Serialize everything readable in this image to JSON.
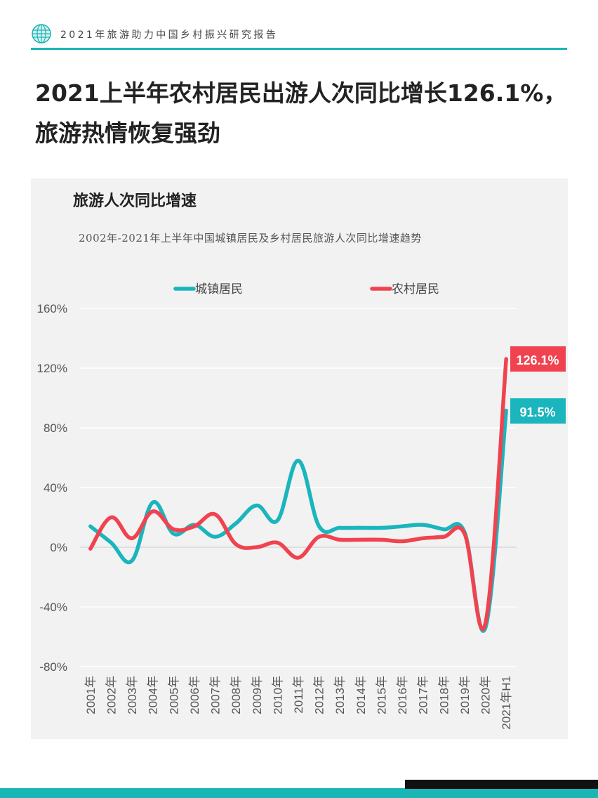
{
  "header": {
    "report_title": "2021年旅游助力中国乡村振兴研究报告"
  },
  "headline": {
    "line1": "2021上半年农村居民出游人次同比增长126.1%，",
    "line2": "旅游热情恢复强劲"
  },
  "chart_heading": "旅游人次同比增速",
  "chart_data": {
    "type": "line",
    "title": "2002年-2021年上半年中国城镇居民及乡村居民旅游人次同比增速趋势",
    "categories": [
      "2001年",
      "2002年",
      "2003年",
      "2004年",
      "2005年",
      "2006年",
      "2007年",
      "2008年",
      "2009年",
      "2010年",
      "2011年",
      "2012年",
      "2013年",
      "2014年",
      "2015年",
      "2016年",
      "2017年",
      "2018年",
      "2019年",
      "2020年",
      "2021年H1"
    ],
    "series": [
      {
        "name": "城镇居民",
        "color": "#1ab5bd",
        "values": [
          14,
          3,
          -9,
          30,
          9,
          15,
          7,
          16,
          28,
          18,
          58,
          14,
          13,
          13,
          13,
          14,
          15,
          12,
          10,
          -54,
          91.5
        ]
      },
      {
        "name": "农村居民",
        "color": "#f0434f",
        "values": [
          -1,
          20,
          6,
          24,
          12,
          14,
          22,
          2,
          0,
          3,
          -7,
          7,
          5,
          5,
          5,
          4,
          6,
          7,
          9,
          -51,
          126.1
        ]
      }
    ],
    "y_ticks": [
      "160%",
      "120%",
      "80%",
      "40%",
      "0%",
      "-40%",
      "-80%"
    ],
    "ylim": [
      -80,
      160
    ],
    "y_unit": "%",
    "end_labels": [
      "126.1%",
      "91.5%"
    ],
    "legend_position": "top",
    "grid": false
  }
}
